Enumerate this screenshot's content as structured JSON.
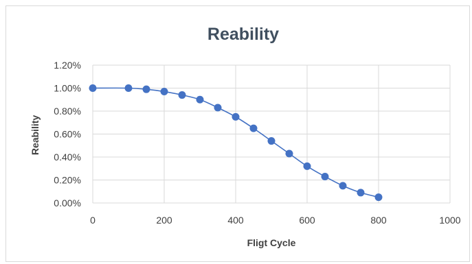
{
  "chart_data": {
    "type": "scatter",
    "title": "Reability",
    "xlabel": "Fligt Cycle",
    "ylabel": "Reability",
    "xlim": [
      0,
      1000
    ],
    "ylim": [
      0,
      1.2
    ],
    "x_ticks": [
      "0",
      "200",
      "400",
      "600",
      "800",
      "1000"
    ],
    "y_ticks": [
      "0.00%",
      "0.20%",
      "0.40%",
      "0.60%",
      "0.80%",
      "1.00%",
      "1.20%"
    ],
    "grid": true,
    "line": "smooth",
    "colors": {
      "series": "#4472c4",
      "grid": "#d9d9d9"
    },
    "series": [
      {
        "x": [
          0,
          100,
          150,
          200,
          250,
          300,
          350,
          400,
          450,
          500,
          550,
          600,
          650,
          700,
          750,
          800
        ],
        "y": [
          1.0,
          1.0,
          0.99,
          0.97,
          0.94,
          0.9,
          0.83,
          0.75,
          0.65,
          0.54,
          0.43,
          0.32,
          0.23,
          0.15,
          0.09,
          0.05
        ]
      }
    ]
  }
}
